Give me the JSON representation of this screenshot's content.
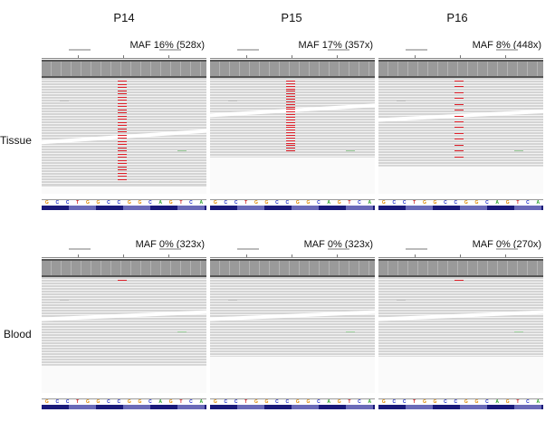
{
  "columns": [
    "P14",
    "P15",
    "P16"
  ],
  "rows": [
    "Tissue",
    "Blood"
  ],
  "panels": [
    {
      "sample": "P14",
      "row": "Tissue",
      "maf": "MAF 16% (528x)",
      "mutation_reads": 32
    },
    {
      "sample": "P15",
      "row": "Tissue",
      "maf": "MAF 17% (357x)",
      "mutation_reads": 28
    },
    {
      "sample": "P16",
      "row": "Tissue",
      "maf": "MAF 8% (448x)",
      "mutation_reads": 14
    },
    {
      "sample": "P14",
      "row": "Blood",
      "maf": "MAF 0% (323x)",
      "mutation_reads": 1
    },
    {
      "sample": "P15",
      "row": "Blood",
      "maf": "MAF 0% (323x)",
      "mutation_reads": 0
    },
    {
      "sample": "P16",
      "row": "Blood",
      "maf": "MAF 0% (270x)",
      "mutation_reads": 1
    }
  ],
  "sequence": [
    "G",
    "C",
    "C",
    "T",
    "G",
    "G",
    "C",
    "C",
    "G",
    "G",
    "C",
    "A",
    "G",
    "T",
    "C",
    "A"
  ],
  "colors": {
    "A": "#2aa02a",
    "C": "#2233cc",
    "G": "#e08a00",
    "T": "#d02020",
    "mutation": "#e0202a"
  }
}
